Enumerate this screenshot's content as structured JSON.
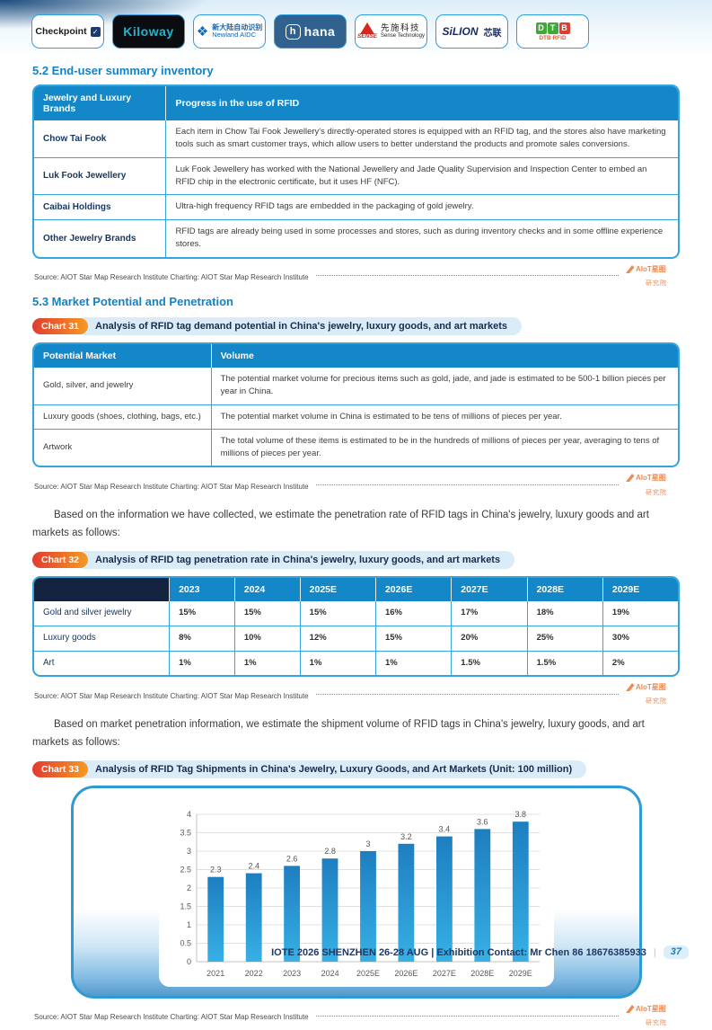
{
  "logos": [
    {
      "name": "checkpoint",
      "text": "Checkpoint"
    },
    {
      "name": "kiloway",
      "text": "Kiloway"
    },
    {
      "name": "newland",
      "line1": "新大陆自动识别",
      "line2": "Newland AIDC"
    },
    {
      "name": "hana",
      "icon_letter": "h",
      "text": "hana"
    },
    {
      "name": "sense",
      "brand": "SENSE",
      "line1": "先施科技",
      "line2": "Sense Technology"
    },
    {
      "name": "silion",
      "text": "SiLION",
      "cn": "芯联"
    },
    {
      "name": "dtb",
      "blocks": [
        "D",
        "T",
        "B"
      ],
      "caption": "DTB RFID"
    }
  ],
  "section52": {
    "heading": "5.2 End-user summary inventory",
    "table": {
      "headers": [
        "Jewelry and Luxury Brands",
        "Progress in the use of RFID"
      ],
      "rows": [
        {
          "brand": "Chow Tai Fook",
          "progress": "Each item in Chow Tai Fook Jewellery's directly-operated stores is equipped with an RFID tag, and the stores also have marketing tools such as smart customer trays, which allow users to better understand the products and promote sales conversions."
        },
        {
          "brand": "Luk Fook Jewellery",
          "progress": "Luk Fook Jewellery has worked with the National Jewellery and Jade Quality Supervision and Inspection Center to embed an RFID chip in the electronic certificate, but it uses HF (NFC)."
        },
        {
          "brand": "Caibai Holdings",
          "progress": "Ultra-high frequency RFID tags are embedded in the packaging of gold jewelry."
        },
        {
          "brand": "Other Jewelry Brands",
          "progress": "RFID tags are already being used in some processes and stores, such as during inventory checks and in some offline experience stores."
        }
      ]
    }
  },
  "source": {
    "text": "Source: AIOT Star Map Research Institute  Charting: AIOT Star Map Research Institute",
    "logo_line1": "AIoT星图",
    "logo_line2": "研究院"
  },
  "section53": {
    "heading": "5.3 Market Potential and Penetration"
  },
  "chart31": {
    "badge": "Chart 31",
    "title": "Analysis of RFID tag demand potential in China's jewelry, luxury goods, and art markets",
    "table": {
      "headers": [
        "Potential Market",
        "Volume"
      ],
      "rows": [
        {
          "market": "Gold, silver, and jewelry",
          "volume": "The potential market volume for precious items such as gold, jade, and jade is estimated to be 500-1 billion pieces per year in China."
        },
        {
          "market": "Luxury goods (shoes, clothing, bags, etc.)",
          "volume": "The potential market volume in China is estimated to be tens of millions of pieces per year."
        },
        {
          "market": "Artwork",
          "volume": "The total volume of these items is estimated to be in the hundreds of millions of pieces per year, averaging to tens of millions of pieces per year."
        }
      ]
    }
  },
  "para1": "Based on the information we have collected, we estimate the penetration rate of RFID tags in China's jewelry, luxury goods and art markets as follows:",
  "chart32": {
    "badge": "Chart 32",
    "title": "Analysis of RFID tag penetration rate in China's jewelry, luxury goods, and art markets",
    "table": {
      "corner": "",
      "columns": [
        "2023",
        "2024",
        "2025E",
        "2026E",
        "2027E",
        "2028E",
        "2029E"
      ],
      "rows": [
        {
          "label": "Gold and silver jewelry",
          "values": [
            "15%",
            "15%",
            "15%",
            "16%",
            "17%",
            "18%",
            "19%"
          ]
        },
        {
          "label": "Luxury goods",
          "values": [
            "8%",
            "10%",
            "12%",
            "15%",
            "20%",
            "25%",
            "30%"
          ]
        },
        {
          "label": "Art",
          "values": [
            "1%",
            "1%",
            "1%",
            "1%",
            "1.5%",
            "1.5%",
            "2%"
          ]
        }
      ]
    }
  },
  "para2": "Based on market penetration information, we estimate the shipment volume of RFID tags in China's jewelry, luxury goods, and art markets as follows:",
  "chart33": {
    "badge": "Chart 33",
    "title": "Analysis of RFID Tag Shipments in China's Jewelry, Luxury Goods, and Art Markets (Unit: 100 million)"
  },
  "chart_data": {
    "type": "bar",
    "title": "Analysis of RFID Tag Shipments in China's Jewelry, Luxury Goods, and Art Markets (Unit: 100 million)",
    "categories": [
      "2021",
      "2022",
      "2023",
      "2024",
      "2025E",
      "2026E",
      "2027E",
      "2028E",
      "2029E"
    ],
    "values": [
      2.3,
      2.4,
      2.6,
      2.8,
      3,
      3.2,
      3.4,
      3.6,
      3.8
    ],
    "xlabel": "",
    "ylabel": "",
    "ylim": [
      0,
      4
    ],
    "ytick_step": 0.5,
    "grid": true,
    "legend": false,
    "bar_color_top": "#1e7ec0",
    "bar_color_bottom": "#36b0e5"
  },
  "colors": {
    "accent_blue": "#1282c6",
    "table_header_blue": "#1487c9",
    "table_border_blue": "#35a3dc",
    "dark_header_cell": "#13233f",
    "badge_red": "#e23b30",
    "badge_orange": "#f59a23",
    "title_pill_blue": "#d9ecf8",
    "aiot_orange": "#ef8a50"
  },
  "footer": {
    "text": "IOTE 2026 SHENZHEN 26-28 AUG | Exhibition Contact: Mr Chen 86 18676385933",
    "separator": "|",
    "page_number": "37"
  }
}
